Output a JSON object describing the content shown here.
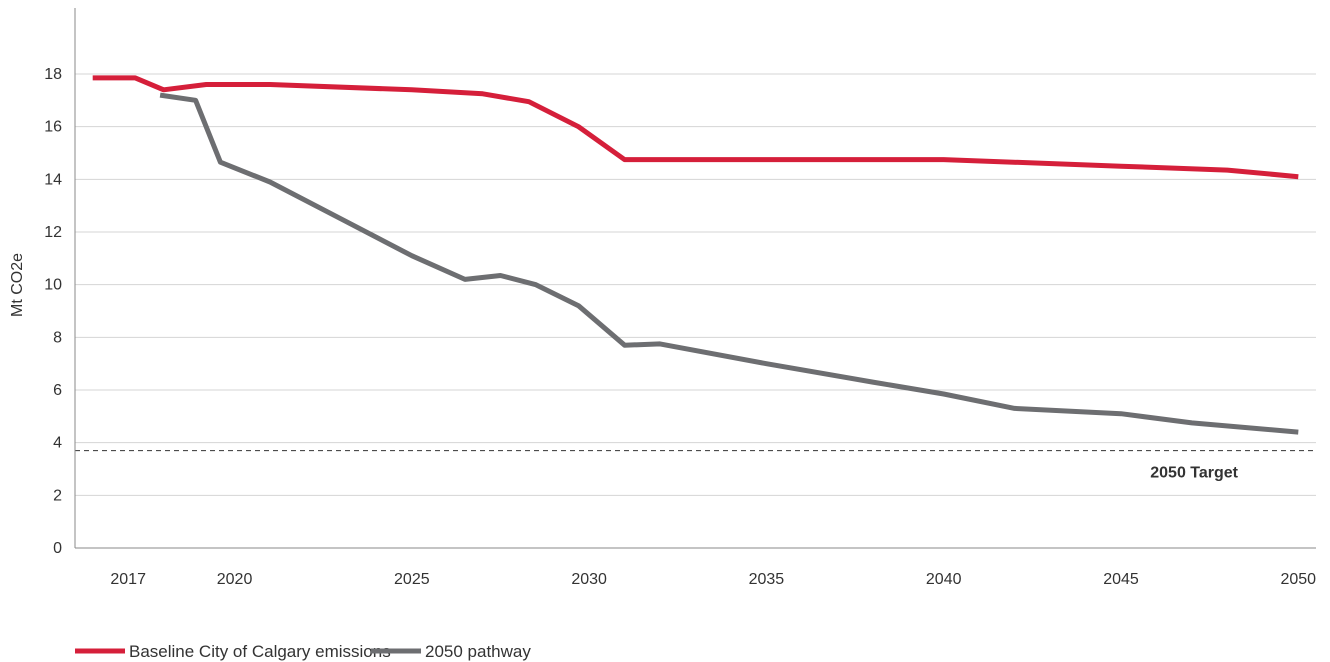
{
  "chart_data": {
    "type": "line",
    "ylabel": "Mt CO2e",
    "ylim": [
      0,
      20
    ],
    "xlim": [
      2015.5,
      2050.5
    ],
    "yticks": [
      0,
      2,
      4,
      6,
      8,
      10,
      12,
      14,
      16,
      18
    ],
    "xticks": [
      2017,
      2020,
      2025,
      2030,
      2035,
      2040,
      2045,
      2050
    ],
    "grid": "horizontal",
    "legend_position": "bottom-left",
    "series": [
      {
        "name": "Baseline City of Calgary emissions",
        "color": "#d51f3a",
        "points": [
          [
            2016.0,
            17.85
          ],
          [
            2017.2,
            17.85
          ],
          [
            2018.0,
            17.4
          ],
          [
            2019.2,
            17.6
          ],
          [
            2021.0,
            17.6
          ],
          [
            2025.0,
            17.4
          ],
          [
            2027.0,
            17.25
          ],
          [
            2028.3,
            16.95
          ],
          [
            2029.7,
            16.0
          ],
          [
            2031.0,
            14.75
          ],
          [
            2040.0,
            14.75
          ],
          [
            2045.0,
            14.5
          ],
          [
            2048.0,
            14.35
          ],
          [
            2050.0,
            14.1
          ]
        ]
      },
      {
        "name": "2050 pathway",
        "color": "#6d6e71",
        "points": [
          [
            2017.9,
            17.2
          ],
          [
            2018.9,
            17.0
          ],
          [
            2019.6,
            14.65
          ],
          [
            2021.0,
            13.9
          ],
          [
            2023.0,
            12.5
          ],
          [
            2025.0,
            11.1
          ],
          [
            2026.5,
            10.2
          ],
          [
            2027.5,
            10.35
          ],
          [
            2028.5,
            10.0
          ],
          [
            2029.7,
            9.2
          ],
          [
            2031.0,
            7.7
          ],
          [
            2032.0,
            7.75
          ],
          [
            2035.0,
            7.0
          ],
          [
            2038.0,
            6.3
          ],
          [
            2040.0,
            5.85
          ],
          [
            2042.0,
            5.3
          ],
          [
            2045.0,
            5.1
          ],
          [
            2047.0,
            4.75
          ],
          [
            2050.0,
            4.4
          ]
        ]
      }
    ],
    "reference_lines": [
      {
        "label": "2050 Target",
        "value": 3.7,
        "style": "dashed",
        "color": "#333333"
      }
    ]
  }
}
